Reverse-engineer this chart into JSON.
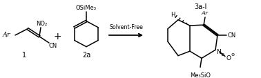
{
  "bg_color": "#ffffff",
  "line_color": "#000000",
  "line_width": 1.1,
  "font_size_label": 7.0,
  "font_size_small": 6.0,
  "arrow_label": "Solvent-Free",
  "compound1_label": "1",
  "compound2_label": "2a",
  "compound3_label": "3a-l",
  "figsize": [
    3.78,
    1.14
  ],
  "dpi": 100
}
